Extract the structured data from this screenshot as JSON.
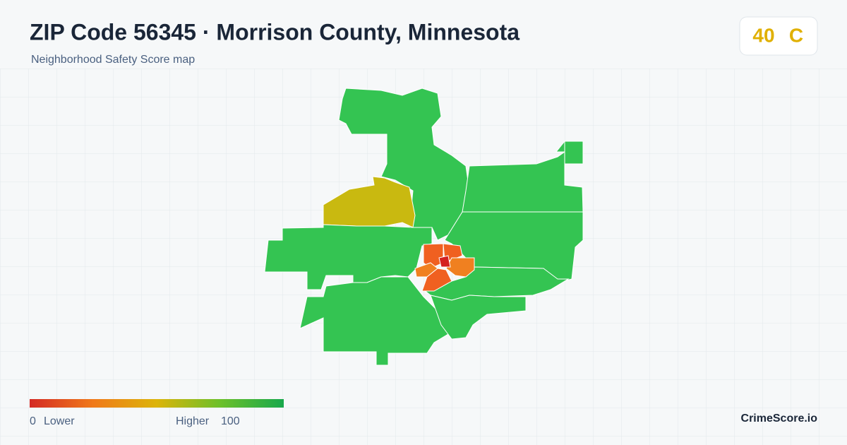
{
  "header": {
    "title": "ZIP Code 56345 · Morrison County, Minnesota",
    "subtitle": "Neighborhood Safety Score map"
  },
  "score": {
    "value": 40,
    "grade": "C"
  },
  "legend": {
    "min": 0,
    "min_label": "Lower",
    "max_label": "Higher",
    "max": 100
  },
  "footer": {
    "brand": "CrimeScore.io"
  }
}
